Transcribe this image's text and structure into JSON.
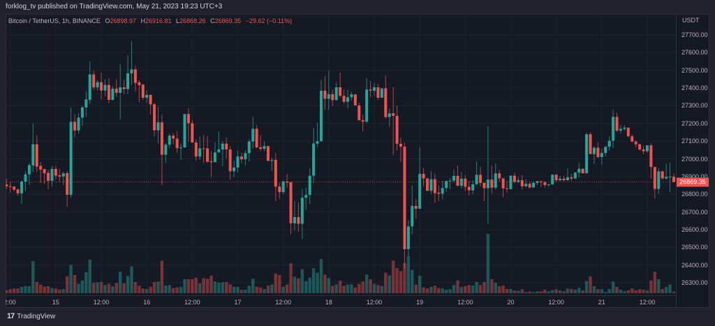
{
  "header": {
    "published": "forklog_tv published on TradingView.com, May 21, 2023 19:23 UTC+3"
  },
  "legend": {
    "symbol": "Bitcoin / TetherUS, 1h, BINANCE",
    "o_label": "O",
    "o": "26898.97",
    "h_label": "H",
    "h": "26916.81",
    "l_label": "L",
    "l": "26868.26",
    "c_label": "C",
    "c": "26869.35",
    "change": "−29.62 (−0.11%)"
  },
  "price_axis": {
    "unit": "USDT",
    "current_price": "26869.35"
  },
  "footer": {
    "logo_mark": "17",
    "logo_text": "TradingView"
  },
  "colors": {
    "up": "#26a69a",
    "down": "#ef5350",
    "background": "#151924",
    "grid": "#1f2330"
  },
  "chart_data": {
    "type": "candlestick",
    "interval": "1h",
    "start": "2023-05-14 11:00",
    "ylim": [
      26230,
      27790
    ],
    "grid": true,
    "y_ticks": [
      "27700.00",
      "27600.00",
      "27500.00",
      "27400.00",
      "27300.00",
      "27200.00",
      "27100.00",
      "27000.00",
      "26900.00",
      "26800.00",
      "26700.00",
      "26600.00",
      "26500.00",
      "26400.00",
      "26300.00"
    ],
    "x_ticks": [
      {
        "label": "2:00",
        "time": "2023-05-14 12:00"
      },
      {
        "label": "15",
        "time": "2023-05-15 00:00"
      },
      {
        "label": "12:00",
        "time": "2023-05-15 12:00"
      },
      {
        "label": "16",
        "time": "2023-05-16 00:00"
      },
      {
        "label": "12:00",
        "time": "2023-05-16 12:00"
      },
      {
        "label": "17",
        "time": "2023-05-17 00:00"
      },
      {
        "label": "12:00",
        "time": "2023-05-17 12:00"
      },
      {
        "label": "18",
        "time": "2023-05-18 00:00"
      },
      {
        "label": "12:00",
        "time": "2023-05-18 12:00"
      },
      {
        "label": "19",
        "time": "2023-05-19 00:00"
      },
      {
        "label": "12:00",
        "time": "2023-05-19 12:00"
      },
      {
        "label": "20",
        "time": "2023-05-20 00:00"
      },
      {
        "label": "12:00",
        "time": "2023-05-20 12:00"
      },
      {
        "label": "21",
        "time": "2023-05-21 00:00"
      },
      {
        "label": "12:00",
        "time": "2023-05-21 12:00"
      }
    ],
    "ohlc": [
      [
        26855,
        26888,
        26830,
        26844
      ],
      [
        26844,
        26869,
        26809,
        26843
      ],
      [
        26843,
        26848,
        26817,
        26826
      ],
      [
        26827,
        26833,
        26789,
        26805
      ],
      [
        26805,
        26879,
        26745,
        26872
      ],
      [
        26872,
        26931,
        26817,
        26912
      ],
      [
        26912,
        26977,
        26852,
        26964
      ],
      [
        26962,
        27200,
        26925,
        27082
      ],
      [
        27082,
        27135,
        26925,
        26956
      ],
      [
        26960,
        26983,
        26864,
        26939
      ],
      [
        26942,
        26944,
        26859,
        26918
      ],
      [
        26921,
        26938,
        26829,
        26876
      ],
      [
        26876,
        26961,
        26843,
        26943
      ],
      [
        26943,
        26960,
        26885,
        26905
      ],
      [
        26907,
        26942,
        26869,
        26900
      ],
      [
        26900,
        26927,
        26852,
        26918
      ],
      [
        26919,
        26931,
        26728,
        26797
      ],
      [
        26797,
        27290,
        26781,
        27209
      ],
      [
        27209,
        27253,
        27122,
        27160
      ],
      [
        27160,
        27260,
        27141,
        27233
      ],
      [
        27233,
        27299,
        27187,
        27290
      ],
      [
        27290,
        27382,
        27237,
        27336
      ],
      [
        27333,
        27551,
        27311,
        27477
      ],
      [
        27477,
        27499,
        27388,
        27404
      ],
      [
        27404,
        27444,
        27385,
        27433
      ],
      [
        27433,
        27486,
        27337,
        27386
      ],
      [
        27386,
        27449,
        27352,
        27417
      ],
      [
        27417,
        27454,
        27315,
        27333
      ],
      [
        27333,
        27411,
        27328,
        27396
      ],
      [
        27396,
        27450,
        27350,
        27373
      ],
      [
        27373,
        27536,
        27224,
        27404
      ],
      [
        27404,
        27448,
        27365,
        27394
      ],
      [
        27394,
        27586,
        27367,
        27483
      ],
      [
        27483,
        27665,
        27417,
        27505
      ],
      [
        27505,
        27527,
        27381,
        27429
      ],
      [
        27432,
        27445,
        27319,
        27416
      ],
      [
        27419,
        27424,
        27332,
        27345
      ],
      [
        27345,
        27385,
        27316,
        27361
      ],
      [
        27361,
        27365,
        27251,
        27308
      ],
      [
        27308,
        27316,
        27127,
        27161
      ],
      [
        27161,
        27295,
        27086,
        27206
      ],
      [
        27206,
        27249,
        26852,
        27023
      ],
      [
        27023,
        27089,
        26977,
        27080
      ],
      [
        27080,
        27145,
        27063,
        27131
      ],
      [
        27131,
        27145,
        27082,
        27114
      ],
      [
        27114,
        27157,
        27036,
        27060
      ],
      [
        27060,
        27086,
        26994,
        27065
      ],
      [
        27065,
        27253,
        27063,
        27253
      ],
      [
        27253,
        27286,
        27096,
        27201
      ],
      [
        27201,
        27220,
        27092,
        27092
      ],
      [
        27092,
        27109,
        26988,
        27013
      ],
      [
        27013,
        27126,
        26994,
        27059
      ],
      [
        27059,
        27135,
        26977,
        27056
      ],
      [
        27059,
        27128,
        26977,
        26984
      ],
      [
        26987,
        27043,
        26898,
        26981
      ],
      [
        26981,
        27092,
        26981,
        27036
      ],
      [
        27036,
        27155,
        27036,
        27053
      ],
      [
        27053,
        27100,
        26958,
        27086
      ],
      [
        27086,
        27118,
        27004,
        27053
      ],
      [
        27053,
        27072,
        26881,
        26930
      ],
      [
        26930,
        26990,
        26898,
        26951
      ],
      [
        26951,
        27047,
        26925,
        27013
      ],
      [
        27013,
        27036,
        26977,
        26997
      ],
      [
        26997,
        27049,
        26964,
        27032
      ],
      [
        27032,
        27112,
        26984,
        27098
      ],
      [
        27098,
        27237,
        27060,
        27170
      ],
      [
        27170,
        27191,
        27059,
        27065
      ],
      [
        27065,
        27132,
        27043,
        27056
      ],
      [
        27056,
        27099,
        27043,
        27072
      ],
      [
        27072,
        27072,
        26988,
        26988
      ],
      [
        26988,
        27006,
        26931,
        26993
      ],
      [
        26994,
        27034,
        26760,
        26843
      ],
      [
        26843,
        26864,
        26774,
        26812
      ],
      [
        26812,
        26879,
        26800,
        26872
      ],
      [
        26872,
        26914,
        26837,
        26866
      ],
      [
        26868,
        26872,
        26574,
        26636
      ],
      [
        26636,
        26760,
        26596,
        26671
      ],
      [
        26671,
        26756,
        26589,
        26633
      ],
      [
        26633,
        26830,
        26546,
        26780
      ],
      [
        26780,
        26837,
        26712,
        26796
      ],
      [
        26796,
        26948,
        26745,
        26905
      ],
      [
        26905,
        27174,
        26863,
        27086
      ],
      [
        27086,
        27205,
        27067,
        27099
      ],
      [
        27099,
        27446,
        27099,
        27385
      ],
      [
        27385,
        27467,
        27276,
        27339
      ],
      [
        27339,
        27500,
        27276,
        27365
      ],
      [
        27365,
        27391,
        27299,
        27332
      ],
      [
        27332,
        27431,
        27328,
        27404
      ],
      [
        27404,
        27486,
        27348,
        27356
      ],
      [
        27356,
        27391,
        27308,
        27322
      ],
      [
        27322,
        27389,
        27286,
        27348
      ],
      [
        27348,
        27378,
        27329,
        27364
      ],
      [
        27364,
        27364,
        27302,
        27302
      ],
      [
        27302,
        27316,
        27218,
        27218
      ],
      [
        27218,
        27249,
        27155,
        27210
      ],
      [
        27210,
        27454,
        27201,
        27391
      ],
      [
        27391,
        27440,
        27348,
        27385
      ],
      [
        27385,
        27428,
        27354,
        27404
      ],
      [
        27404,
        27424,
        27335,
        27345
      ],
      [
        27345,
        27398,
        27345,
        27398
      ],
      [
        27398,
        27470,
        27227,
        27236
      ],
      [
        27236,
        27282,
        27181,
        27257
      ],
      [
        27257,
        27404,
        27023,
        27243
      ],
      [
        27243,
        27302,
        27047,
        27085
      ],
      [
        27085,
        27118,
        26981,
        27069
      ],
      [
        27069,
        27091,
        26380,
        26490
      ],
      [
        26490,
        26653,
        26445,
        26618
      ],
      [
        26618,
        26849,
        26574,
        26734
      ],
      [
        26734,
        26772,
        26662,
        26718
      ],
      [
        26718,
        27065,
        26718,
        26915
      ],
      [
        26915,
        26947,
        26846,
        26889
      ],
      [
        26889,
        26892,
        26819,
        26819
      ],
      [
        26819,
        26931,
        26802,
        26885
      ],
      [
        26885,
        26916,
        26751,
        26806
      ],
      [
        26809,
        26850,
        26763,
        26803
      ],
      [
        26803,
        26875,
        26771,
        26835
      ],
      [
        26835,
        26875,
        26813,
        26875
      ],
      [
        26875,
        26892,
        26829,
        26877
      ],
      [
        26877,
        26940,
        26867,
        26904
      ],
      [
        26904,
        26962,
        26846,
        26848
      ],
      [
        26848,
        26927,
        26833,
        26888
      ],
      [
        26888,
        26908,
        26820,
        26842
      ],
      [
        26842,
        26875,
        26793,
        26822
      ],
      [
        26822,
        26879,
        26800,
        26856
      ],
      [
        26856,
        26988,
        26852,
        26910
      ],
      [
        26910,
        26955,
        26843,
        26864
      ],
      [
        26864,
        26864,
        26763,
        26834
      ],
      [
        26834,
        27184,
        26633,
        26883
      ],
      [
        26883,
        26962,
        26803,
        26837
      ],
      [
        26837,
        26975,
        26826,
        26918
      ],
      [
        26918,
        26938,
        26872,
        26890
      ],
      [
        26890,
        26890,
        26783,
        26833
      ],
      [
        26833,
        26875,
        26809,
        26829
      ],
      [
        26829,
        26905,
        26829,
        26905
      ],
      [
        26905,
        26922,
        26863,
        26870
      ],
      [
        26870,
        26898,
        26863,
        26879
      ],
      [
        26879,
        26908,
        26826,
        26845
      ],
      [
        26845,
        26885,
        26839,
        26859
      ],
      [
        26859,
        26869,
        26833,
        26838
      ],
      [
        26838,
        26872,
        26838,
        26864
      ],
      [
        26864,
        26876,
        26852,
        26873
      ],
      [
        26873,
        26876,
        26842,
        26868
      ],
      [
        26868,
        26872,
        26837,
        26852
      ],
      [
        26852,
        26859,
        26842,
        26855
      ],
      [
        26855,
        26914,
        26855,
        26910
      ],
      [
        26910,
        26914,
        26872,
        26879
      ],
      [
        26879,
        26905,
        26875,
        26888
      ],
      [
        26888,
        26905,
        26875,
        26879
      ],
      [
        26879,
        26947,
        26879,
        26896
      ],
      [
        26896,
        26915,
        26876,
        26889
      ],
      [
        26889,
        26925,
        26885,
        26922
      ],
      [
        26922,
        26977,
        26896,
        26944
      ],
      [
        26944,
        26944,
        26918,
        26918
      ],
      [
        26918,
        27146,
        26918,
        27139
      ],
      [
        27139,
        27151,
        27027,
        27027
      ],
      [
        27027,
        27072,
        26971,
        27063
      ],
      [
        27063,
        27093,
        27004,
        27010
      ],
      [
        27010,
        27056,
        26968,
        27033
      ],
      [
        27033,
        27072,
        27013,
        27068
      ],
      [
        27068,
        27128,
        27047,
        27102
      ],
      [
        27102,
        27279,
        27063,
        27237
      ],
      [
        27237,
        27260,
        27151,
        27159
      ],
      [
        27159,
        27191,
        27145,
        27169
      ],
      [
        27169,
        27191,
        27159,
        27176
      ],
      [
        27176,
        27176,
        27122,
        27127
      ],
      [
        27127,
        27138,
        27092,
        27098
      ],
      [
        27098,
        27102,
        27065,
        27082
      ],
      [
        27082,
        27086,
        27047,
        27053
      ],
      [
        27053,
        27072,
        27027,
        27043
      ],
      [
        27043,
        27076,
        27033,
        27076
      ],
      [
        27076,
        27086,
        26889,
        26954
      ],
      [
        26954,
        26954,
        26778,
        26830
      ],
      [
        26830,
        26948,
        26802,
        26929
      ],
      [
        26929,
        26934,
        26885,
        26889
      ],
      [
        26889,
        26971,
        26883,
        26898
      ],
      [
        26898,
        26977,
        26813,
        26899
      ],
      [
        26898.97,
        26916.81,
        26868.26,
        26869.35
      ]
    ],
    "volume_relative": [
      13,
      17,
      20,
      20,
      27,
      30,
      30,
      137,
      48,
      37,
      28,
      30,
      22,
      20,
      15,
      18,
      73,
      122,
      78,
      40,
      55,
      90,
      144,
      44,
      46,
      48,
      35,
      40,
      30,
      44,
      92,
      42,
      74,
      115,
      48,
      33,
      20,
      18,
      28,
      47,
      50,
      140,
      33,
      35,
      22,
      25,
      27,
      60,
      60,
      60,
      67,
      42,
      64,
      62,
      76,
      50,
      45,
      47,
      48,
      38,
      28,
      27,
      15,
      15,
      32,
      62,
      28,
      25,
      18,
      33,
      37,
      85,
      78,
      28,
      37,
      128,
      71,
      63,
      103,
      52,
      67,
      107,
      88,
      147,
      80,
      66,
      32,
      38,
      54,
      32,
      37,
      38,
      25,
      40,
      50,
      80,
      60,
      40,
      35,
      32,
      88,
      76,
      140,
      108,
      95,
      130,
      158,
      100,
      37,
      75,
      25,
      20,
      27,
      32,
      22,
      20,
      15,
      17,
      35,
      55,
      27,
      30,
      35,
      33,
      48,
      35,
      48,
      255,
      60,
      45,
      30,
      33,
      18,
      17,
      12,
      10,
      17,
      5,
      8,
      5,
      8,
      8,
      15,
      8,
      13,
      17,
      12,
      8,
      20,
      18,
      15,
      23,
      12,
      52,
      72,
      30,
      17,
      17,
      5,
      17,
      50,
      27,
      15,
      8,
      12,
      20,
      12,
      17,
      15,
      12,
      55,
      92,
      60,
      18,
      27,
      38,
      7
    ]
  }
}
